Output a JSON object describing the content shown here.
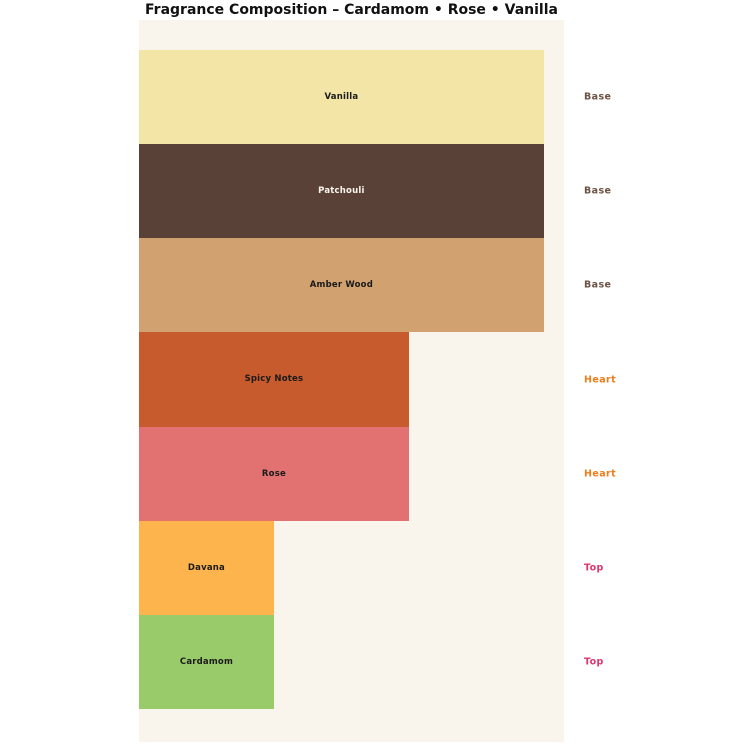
{
  "chart": {
    "title": "Fragrance Composition – Cardamom • Rose • Vanilla"
  },
  "chart_data": {
    "type": "bar",
    "orientation": "horizontal",
    "title": "Fragrance Composition – Cardamom • Rose • Vanilla",
    "xlabel": "",
    "ylabel": "",
    "xlim": [
      0,
      3.15
    ],
    "grid": false,
    "legend": "none",
    "plot_bg": "#FAF5EC",
    "page_bg": "#FFFFFF",
    "rows": [
      {
        "label": "Vanilla",
        "category": "Base",
        "value": 3,
        "color": "#F2E5A6",
        "label_color": "#1a1a1a"
      },
      {
        "label": "Patchouli",
        "category": "Base",
        "value": 3,
        "color": "#5A4138",
        "label_color": "#FAF5EC"
      },
      {
        "label": "Amber Wood",
        "category": "Base",
        "value": 3,
        "color": "#D1A170",
        "label_color": "#1a1a1a"
      },
      {
        "label": "Spicy Notes",
        "category": "Heart",
        "value": 2,
        "color": "#C85B2D",
        "label_color": "#1a1a1a"
      },
      {
        "label": "Rose",
        "category": "Heart",
        "value": 2,
        "color": "#E17271",
        "label_color": "#1a1a1a"
      },
      {
        "label": "Davana",
        "category": "Top",
        "value": 1,
        "color": "#FEB44C",
        "label_color": "#1a1a1a"
      },
      {
        "label": "Cardamom",
        "category": "Top",
        "value": 1,
        "color": "#99CB6A",
        "label_color": "#1a1a1a"
      }
    ],
    "category_colors": {
      "Base": "#6B5244",
      "Heart": "#EF7D1A",
      "Top": "#DD3570"
    }
  }
}
